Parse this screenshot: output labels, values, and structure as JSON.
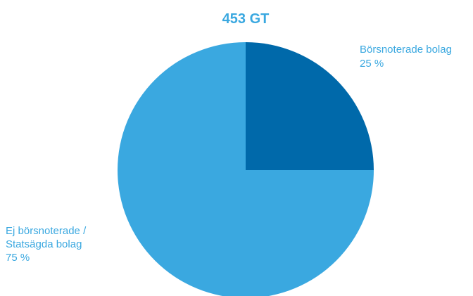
{
  "chart_data": {
    "type": "pie",
    "title": "453 GT",
    "slices": [
      {
        "label_lines": [
          "Börsnoterade bolag"
        ],
        "percent_label": "25 %",
        "value": 25,
        "color": "#0069aa"
      },
      {
        "label_lines": [
          "Ej börsnoterade /",
          "Statsägda bolag"
        ],
        "percent_label": "75 %",
        "value": 75,
        "color": "#3aa8e0"
      }
    ],
    "label_color": "#3aa8e0",
    "title_color": "#3aa8e0"
  }
}
